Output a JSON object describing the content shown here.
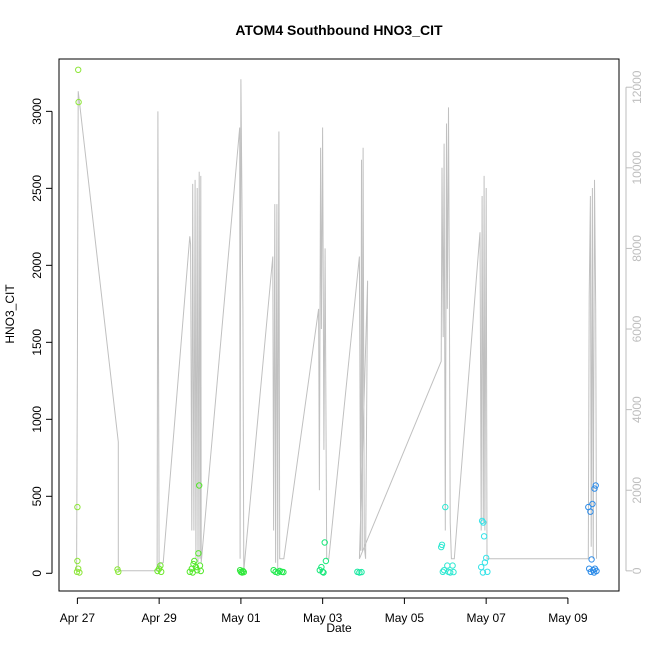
{
  "chart_data": {
    "type": "scatter",
    "title": "ATOM4 Southbound HNO3_CIT",
    "xlabel": "Date",
    "ylabel": "HNO3_CIT",
    "x_tick_labels": [
      "Apr 27",
      "Apr 29",
      "May 01",
      "May 03",
      "May 05",
      "May 07",
      "May 09"
    ],
    "x_tick_days": [
      0,
      2,
      4,
      6,
      8,
      10,
      12
    ],
    "xlim_days": [
      -0.45,
      13.25
    ],
    "y_ticks": [
      0,
      500,
      1000,
      1500,
      2000,
      2500,
      3000
    ],
    "ylim": [
      -115,
      3340
    ],
    "y2_ticks": [
      0,
      2000,
      4000,
      6000,
      8000,
      10000,
      12000
    ],
    "y2lim": [
      -500,
      12700
    ],
    "y2_color": "#bebebe",
    "grid": false,
    "points": [
      {
        "x": 0.02,
        "y": 3270,
        "color": "#8ee63a"
      },
      {
        "x": 0.03,
        "y": 3060,
        "color": "#8ee63a"
      },
      {
        "x": 0.0,
        "y": 430,
        "color": "#8ee63a"
      },
      {
        "x": 0.0,
        "y": 80,
        "color": "#8ee63a"
      },
      {
        "x": 0.02,
        "y": 30,
        "color": "#8ee63a"
      },
      {
        "x": -0.01,
        "y": 10,
        "color": "#8ee63a"
      },
      {
        "x": 0.05,
        "y": 5,
        "color": "#8ee63a"
      },
      {
        "x": 0.98,
        "y": 25,
        "color": "#86e833"
      },
      {
        "x": 1.0,
        "y": 10,
        "color": "#86e833"
      },
      {
        "x": 1.96,
        "y": 15,
        "color": "#6fe82e"
      },
      {
        "x": 2.0,
        "y": 30,
        "color": "#6fe82e"
      },
      {
        "x": 2.03,
        "y": 50,
        "color": "#6fe82e"
      },
      {
        "x": 2.05,
        "y": 10,
        "color": "#6fe82e"
      },
      {
        "x": 2.75,
        "y": 10,
        "color": "#55e82b"
      },
      {
        "x": 2.8,
        "y": 30,
        "color": "#55e82b"
      },
      {
        "x": 2.84,
        "y": 60,
        "color": "#55e82b"
      },
      {
        "x": 2.86,
        "y": 80,
        "color": "#55e82b"
      },
      {
        "x": 2.9,
        "y": 40,
        "color": "#55e82b"
      },
      {
        "x": 2.93,
        "y": 20,
        "color": "#55e82b"
      },
      {
        "x": 2.96,
        "y": 130,
        "color": "#55e82b"
      },
      {
        "x": 2.98,
        "y": 570,
        "color": "#55e82b"
      },
      {
        "x": 3.0,
        "y": 50,
        "color": "#55e82b"
      },
      {
        "x": 3.02,
        "y": 15,
        "color": "#55e82b"
      },
      {
        "x": 2.82,
        "y": 5,
        "color": "#55e82b"
      },
      {
        "x": 3.98,
        "y": 20,
        "color": "#2fe83a"
      },
      {
        "x": 4.0,
        "y": 10,
        "color": "#2fe83a"
      },
      {
        "x": 4.03,
        "y": 5,
        "color": "#2fe83a"
      },
      {
        "x": 4.05,
        "y": 15,
        "color": "#2fe83a"
      },
      {
        "x": 4.07,
        "y": 8,
        "color": "#2fe83a"
      },
      {
        "x": 4.8,
        "y": 20,
        "color": "#1ee84b"
      },
      {
        "x": 4.85,
        "y": 10,
        "color": "#1ee84b"
      },
      {
        "x": 4.9,
        "y": 5,
        "color": "#1ee84b"
      },
      {
        "x": 4.95,
        "y": 15,
        "color": "#1ee84b"
      },
      {
        "x": 5.0,
        "y": 10,
        "color": "#1ee84b"
      },
      {
        "x": 5.04,
        "y": 8,
        "color": "#1ee84b"
      },
      {
        "x": 5.93,
        "y": 20,
        "color": "#18e87a"
      },
      {
        "x": 5.97,
        "y": 40,
        "color": "#18e87a"
      },
      {
        "x": 6.05,
        "y": 200,
        "color": "#18e87a"
      },
      {
        "x": 6.08,
        "y": 80,
        "color": "#18e87a"
      },
      {
        "x": 6.0,
        "y": 10,
        "color": "#18e87a"
      },
      {
        "x": 6.02,
        "y": 5,
        "color": "#18e87a"
      },
      {
        "x": 6.85,
        "y": 10,
        "color": "#15e8a0"
      },
      {
        "x": 6.9,
        "y": 5,
        "color": "#15e8a0"
      },
      {
        "x": 6.95,
        "y": 8,
        "color": "#15e8a0"
      },
      {
        "x": 8.9,
        "y": 170,
        "color": "#2ee8d2"
      },
      {
        "x": 8.92,
        "y": 185,
        "color": "#2ee8d2"
      },
      {
        "x": 8.94,
        "y": 10,
        "color": "#2ee8d2"
      },
      {
        "x": 8.97,
        "y": 20,
        "color": "#2ee8d2"
      },
      {
        "x": 9.0,
        "y": 430,
        "color": "#2ee8d2"
      },
      {
        "x": 9.05,
        "y": 50,
        "color": "#2ee8d2"
      },
      {
        "x": 9.08,
        "y": 10,
        "color": "#2ee8d2"
      },
      {
        "x": 9.12,
        "y": 5,
        "color": "#2ee8d2"
      },
      {
        "x": 9.18,
        "y": 50,
        "color": "#2ee8d2"
      },
      {
        "x": 9.2,
        "y": 8,
        "color": "#2ee8d2"
      },
      {
        "x": 9.9,
        "y": 340,
        "color": "#35e3e8"
      },
      {
        "x": 9.93,
        "y": 330,
        "color": "#35e3e8"
      },
      {
        "x": 9.95,
        "y": 240,
        "color": "#35e3e8"
      },
      {
        "x": 9.97,
        "y": 70,
        "color": "#35e3e8"
      },
      {
        "x": 10.0,
        "y": 100,
        "color": "#35e3e8"
      },
      {
        "x": 9.88,
        "y": 40,
        "color": "#35e3e8"
      },
      {
        "x": 10.03,
        "y": 10,
        "color": "#35e3e8"
      },
      {
        "x": 9.92,
        "y": 5,
        "color": "#35e3e8"
      },
      {
        "x": 12.5,
        "y": 430,
        "color": "#2e8ce8"
      },
      {
        "x": 12.55,
        "y": 400,
        "color": "#2e8ce8"
      },
      {
        "x": 12.6,
        "y": 450,
        "color": "#2e8ce8"
      },
      {
        "x": 12.65,
        "y": 550,
        "color": "#2e8ce8"
      },
      {
        "x": 12.68,
        "y": 570,
        "color": "#2e8ce8"
      },
      {
        "x": 12.58,
        "y": 90,
        "color": "#2e8ce8"
      },
      {
        "x": 12.52,
        "y": 30,
        "color": "#2e8ce8"
      },
      {
        "x": 12.62,
        "y": 20,
        "color": "#2e8ce8"
      },
      {
        "x": 12.66,
        "y": 30,
        "color": "#2e8ce8"
      },
      {
        "x": 12.56,
        "y": 10,
        "color": "#2e8ce8"
      },
      {
        "x": 12.64,
        "y": 5,
        "color": "#2e8ce8"
      },
      {
        "x": 12.7,
        "y": 15,
        "color": "#2e8ce8"
      }
    ],
    "y2_line": {
      "color": "#c0c0c0",
      "x": [
        -0.02,
        0.0,
        0.02,
        1.0,
        1.0,
        1.02,
        1.95,
        1.97,
        2.0,
        2.02,
        2.1,
        2.75,
        2.77,
        2.8,
        2.82,
        2.85,
        2.88,
        2.9,
        2.93,
        2.95,
        2.98,
        3.0,
        3.02,
        3.03,
        3.97,
        3.98,
        4.0,
        4.05,
        4.07,
        4.78,
        4.8,
        4.83,
        4.85,
        4.88,
        4.9,
        4.93,
        4.95,
        4.98,
        5.0,
        5.02,
        5.05,
        5.9,
        5.92,
        5.95,
        5.97,
        6.0,
        6.03,
        6.06,
        6.1,
        6.15,
        6.9,
        6.93,
        6.95,
        6.97,
        6.99,
        7.02,
        7.05,
        7.1,
        6.9,
        8.9,
        8.92,
        8.95,
        8.97,
        9.0,
        9.03,
        9.05,
        9.08,
        9.1,
        9.12,
        9.15,
        9.18,
        9.2,
        9.22,
        9.85,
        9.88,
        9.9,
        9.93,
        9.95,
        9.97,
        10.0,
        10.02,
        12.5,
        12.52,
        12.55,
        12.57,
        12.6,
        12.62,
        12.65,
        12.68,
        12.7
      ],
      "y": [
        0,
        5200,
        11900,
        3200,
        0,
        0,
        0,
        11400,
        0,
        200,
        200,
        8300,
        8100,
        1000,
        9600,
        1000,
        9700,
        300,
        9500,
        200,
        9900,
        300,
        9800,
        200,
        11000,
        300,
        12200,
        6500,
        0,
        7800,
        1000,
        9100,
        200,
        9100,
        0,
        10900,
        300,
        300,
        300,
        300,
        300,
        6500,
        2000,
        10500,
        6000,
        11000,
        3000,
        8000,
        300,
        300,
        7800,
        500,
        10200,
        500,
        10500,
        600,
        300,
        7200,
        300,
        5200,
        10000,
        5800,
        10600,
        1000,
        11100,
        6500,
        11500,
        6800,
        1200,
        300,
        300,
        300,
        300,
        8400,
        1000,
        9300,
        1200,
        9800,
        1000,
        9500,
        300,
        300,
        6800,
        9300,
        600,
        9500,
        300,
        9700,
        6500,
        300
      ]
    }
  }
}
